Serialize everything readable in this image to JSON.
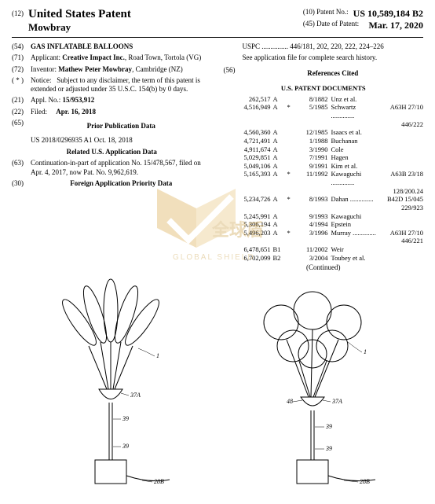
{
  "header": {
    "code_left": "(12)",
    "country_title": "United States Patent",
    "inventor_line": "Mowbray",
    "patent_no_label": "(10) Patent No.:",
    "patent_no": "US 10,589,184 B2",
    "date_label": "(45) Date of Patent:",
    "date": "Mar. 17, 2020"
  },
  "left": {
    "title_code": "(54)",
    "title": "GAS INFLATABLE BALLOONS",
    "applicant_code": "(71)",
    "applicant_label": "Applicant:",
    "applicant_val": "Creative Impact Inc., Road Town, Tortola (VG)",
    "inventor_code": "(72)",
    "inventor_label": "Inventor:",
    "inventor_val": "Mathew Peter Mowbray, Cambridge (NZ)",
    "notice_code": "( * )",
    "notice_label": "Notice:",
    "notice_val": "Subject to any disclaimer, the term of this patent is extended or adjusted under 35 U.S.C. 154(b) by 0 days.",
    "appl_code": "(21)",
    "appl_label": "Appl. No.:",
    "appl_val": "15/953,912",
    "filed_code": "(22)",
    "filed_label": "Filed:",
    "filed_val": "Apr. 16, 2018",
    "prior_code": "(65)",
    "prior_title": "Prior Publication Data",
    "prior_val": "US 2018/0296935 A1    Oct. 18, 2018",
    "related_title": "Related U.S. Application Data",
    "cont_code": "(63)",
    "cont_val": "Continuation-in-part of application No. 15/478,567, filed on Apr. 4, 2017, now Pat. No. 9,962,619.",
    "foreign_code": "(30)",
    "foreign_title": "Foreign Application Priority Data"
  },
  "right": {
    "uspc_label": "USPC",
    "uspc_val": "446/181, 202, 220, 222, 224–226",
    "uspc_note": "See application file for complete search history.",
    "refs_code": "(56)",
    "refs_title": "References Cited",
    "docs_title": "U.S. PATENT DOCUMENTS",
    "continued": "(Continued)",
    "refs": [
      {
        "num": "262,517",
        "t": "A",
        "date": "8/1882",
        "name": "Unz et al."
      },
      {
        "num": "4,516,949",
        "t": "A",
        "s": "*",
        "date": "5/1985",
        "name": "Schwartz",
        "cls": "A63H 27/10",
        "cls2": "446/222"
      },
      {
        "num": "4,560,360",
        "t": "A",
        "date": "12/1985",
        "name": "Isaacs et al."
      },
      {
        "num": "4,721,491",
        "t": "A",
        "date": "1/1988",
        "name": "Buchanan"
      },
      {
        "num": "4,911,674",
        "t": "A",
        "date": "3/1990",
        "name": "Cole"
      },
      {
        "num": "5,029,851",
        "t": "A",
        "date": "7/1991",
        "name": "Hagen"
      },
      {
        "num": "5,049,106",
        "t": "A",
        "date": "9/1991",
        "name": "Kim et al."
      },
      {
        "num": "5,165,393",
        "t": "A",
        "s": "*",
        "date": "11/1992",
        "name": "Kawaguchi",
        "cls": "A63B 23/18",
        "cls2": "128/200.24"
      },
      {
        "num": "5,234,726",
        "t": "A",
        "s": "*",
        "date": "8/1993",
        "name": "Dahan",
        "cls": "B42D 15/045",
        "cls2": "229/923"
      },
      {
        "num": "5,245,991",
        "t": "A",
        "date": "9/1993",
        "name": "Kawaguchi"
      },
      {
        "num": "5,306,194",
        "t": "A",
        "date": "4/1994",
        "name": "Epstein"
      },
      {
        "num": "5,496,203",
        "t": "A",
        "s": "*",
        "date": "3/1996",
        "name": "Murray",
        "cls": "A63H 27/10",
        "cls2": "446/221"
      },
      {
        "num": "6,478,651",
        "t": "B1",
        "date": "11/2002",
        "name": "Weir"
      },
      {
        "num": "6,702,099",
        "t": "B2",
        "date": "3/2004",
        "name": "Toubey et al."
      }
    ]
  },
  "watermark": {
    "cn": "全球盾",
    "en": "GLOBAL SHIELD"
  },
  "figure_labels": {
    "l1": "1",
    "l37A": "37A",
    "l39": "39",
    "l28B": "28B",
    "l48": "48"
  }
}
